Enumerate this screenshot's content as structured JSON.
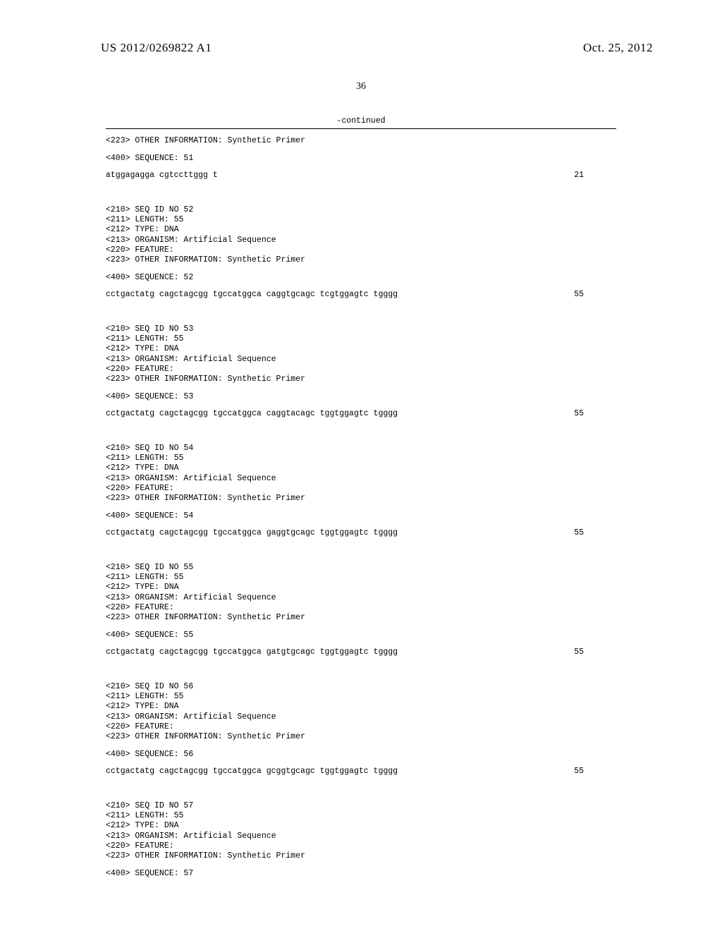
{
  "header": {
    "pub_number": "US 2012/0269822 A1",
    "pub_date": "Oct. 25, 2012",
    "page_number": "36"
  },
  "continued_label": "-continued",
  "sequences": [
    {
      "prefix": [
        "<223> OTHER INFORMATION: Synthetic Primer"
      ],
      "header_400": "<400> SEQUENCE: 51",
      "seq_text": "atggagagga cgtccttggg t",
      "seq_len": "21"
    },
    {
      "prefix": [
        "<210> SEQ ID NO 52",
        "<211> LENGTH: 55",
        "<212> TYPE: DNA",
        "<213> ORGANISM: Artificial Sequence",
        "<220> FEATURE:",
        "<223> OTHER INFORMATION: Synthetic Primer"
      ],
      "header_400": "<400> SEQUENCE: 52",
      "seq_text": "cctgactatg cagctagcgg tgccatggca caggtgcagc tcgtggagtc tgggg",
      "seq_len": "55"
    },
    {
      "prefix": [
        "<210> SEQ ID NO 53",
        "<211> LENGTH: 55",
        "<212> TYPE: DNA",
        "<213> ORGANISM: Artificial Sequence",
        "<220> FEATURE:",
        "<223> OTHER INFORMATION: Synthetic Primer"
      ],
      "header_400": "<400> SEQUENCE: 53",
      "seq_text": "cctgactatg cagctagcgg tgccatggca caggtacagc tggtggagtc tgggg",
      "seq_len": "55"
    },
    {
      "prefix": [
        "<210> SEQ ID NO 54",
        "<211> LENGTH: 55",
        "<212> TYPE: DNA",
        "<213> ORGANISM: Artificial Sequence",
        "<220> FEATURE:",
        "<223> OTHER INFORMATION: Synthetic Primer"
      ],
      "header_400": "<400> SEQUENCE: 54",
      "seq_text": "cctgactatg cagctagcgg tgccatggca gaggtgcagc tggtggagtc tgggg",
      "seq_len": "55"
    },
    {
      "prefix": [
        "<210> SEQ ID NO 55",
        "<211> LENGTH: 55",
        "<212> TYPE: DNA",
        "<213> ORGANISM: Artificial Sequence",
        "<220> FEATURE:",
        "<223> OTHER INFORMATION: Synthetic Primer"
      ],
      "header_400": "<400> SEQUENCE: 55",
      "seq_text": "cctgactatg cagctagcgg tgccatggca gatgtgcagc tggtggagtc tgggg",
      "seq_len": "55"
    },
    {
      "prefix": [
        "<210> SEQ ID NO 56",
        "<211> LENGTH: 55",
        "<212> TYPE: DNA",
        "<213> ORGANISM: Artificial Sequence",
        "<220> FEATURE:",
        "<223> OTHER INFORMATION: Synthetic Primer"
      ],
      "header_400": "<400> SEQUENCE: 56",
      "seq_text": "cctgactatg cagctagcgg tgccatggca gcggtgcagc tggtggagtc tgggg",
      "seq_len": "55"
    },
    {
      "prefix": [
        "<210> SEQ ID NO 57",
        "<211> LENGTH: 55",
        "<212> TYPE: DNA",
        "<213> ORGANISM: Artificial Sequence",
        "<220> FEATURE:",
        "<223> OTHER INFORMATION: Synthetic Primer"
      ],
      "header_400": "<400> SEQUENCE: 57",
      "seq_text": "",
      "seq_len": ""
    }
  ]
}
